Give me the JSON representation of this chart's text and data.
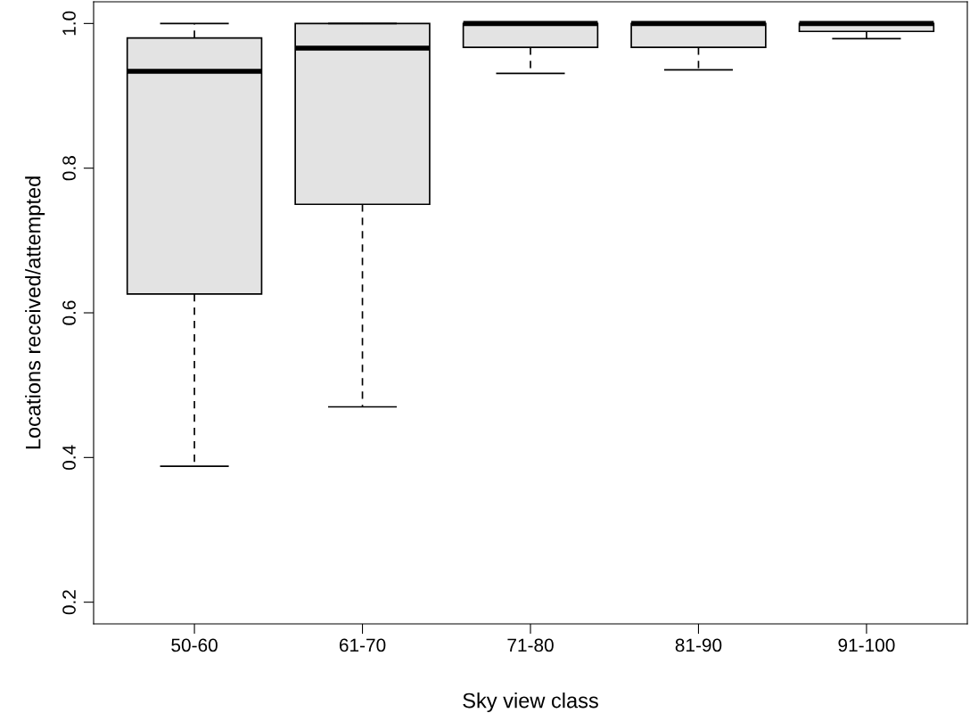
{
  "chart_data": {
    "type": "box",
    "xlabel": "Sky view class",
    "ylabel": "Locations received/attempted",
    "categories": [
      "50-60",
      "61-70",
      "71-80",
      "81-90",
      "91-100"
    ],
    "color": "#e3e3e3",
    "ylim": [
      0.17,
      1.03
    ],
    "yticks": [
      0.2,
      0.4,
      0.6,
      0.8,
      {
        "value": 1.0,
        "label": "1.0"
      }
    ],
    "grid": false,
    "boxes": [
      {
        "low": 0.388,
        "q1": 0.626,
        "median": 0.934,
        "q3": 0.98,
        "high": 1.0
      },
      {
        "low": 0.47,
        "q1": 0.75,
        "median": 0.966,
        "q3": 1.0,
        "high": 1.0
      },
      {
        "low": 0.931,
        "q1": 0.967,
        "median": 1.0,
        "q3": 1.0,
        "high": 1.0
      },
      {
        "low": 0.936,
        "q1": 0.967,
        "median": 1.0,
        "q3": 1.0,
        "high": 1.0
      },
      {
        "low": 0.979,
        "q1": 0.989,
        "median": 1.0,
        "q3": 1.0,
        "high": 1.0
      }
    ]
  }
}
